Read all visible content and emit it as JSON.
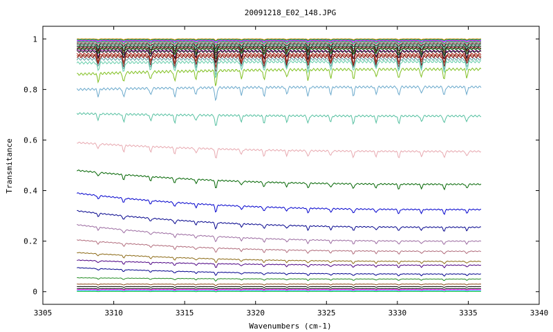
{
  "chart_data": {
    "type": "line",
    "title": "20091218_E02_148.JPG",
    "xlabel": "Wavenumbers (cm-1)",
    "ylabel": "Transmitance",
    "xlim": [
      3305,
      3340
    ],
    "ylim": [
      -0.05,
      1.05
    ],
    "x_ticks": [
      3305,
      3310,
      3315,
      3320,
      3325,
      3330,
      3335,
      3340
    ],
    "y_ticks": [
      0,
      0.2,
      0.4,
      0.6,
      0.8,
      1
    ],
    "x_tick_labels": [
      "3305",
      "3310",
      "3315",
      "3320",
      "3325",
      "3330",
      "3335",
      "3340"
    ],
    "y_tick_labels": [
      "0",
      "0.2",
      "0.4",
      "0.6",
      "0.8",
      "1"
    ],
    "x_range": [
      3307.4,
      3335.9
    ],
    "grid": false,
    "legend": "none",
    "absorption_lines": [
      3308.9,
      3310.7,
      3312.6,
      3314.3,
      3315.8,
      3317.2,
      3319.0,
      3320.6,
      3322.2,
      3323.7,
      3325.3,
      3326.9,
      3328.5,
      3330.1,
      3331.7,
      3333.3,
      3334.9
    ],
    "series": [
      {
        "color": "#ff8c00",
        "start": 1.0,
        "end": 1.0,
        "depth": 0.004
      },
      {
        "color": "#228b22",
        "start": 0.998,
        "end": 0.998,
        "depth": 0.004
      },
      {
        "color": "#1e90ff",
        "start": 0.995,
        "end": 0.995,
        "depth": 0.005
      },
      {
        "color": "#ff00ff",
        "start": 0.993,
        "end": 0.993,
        "depth": 0.006
      },
      {
        "color": "#808000",
        "start": 0.99,
        "end": 0.99,
        "depth": 0.008
      },
      {
        "color": "#00ced1",
        "start": 0.988,
        "end": 0.988,
        "depth": 0.008
      },
      {
        "color": "#cd5c5c",
        "start": 0.985,
        "end": 0.985,
        "depth": 0.01
      },
      {
        "color": "#000000",
        "start": 0.98,
        "end": 0.98,
        "depth": 0.012
      },
      {
        "color": "#2e8b57",
        "start": 0.975,
        "end": 0.975,
        "depth": 0.015
      },
      {
        "color": "#000000",
        "start": 0.97,
        "end": 0.97,
        "depth": 0.018
      },
      {
        "color": "#8b0000",
        "start": 0.965,
        "end": 0.965,
        "depth": 0.02
      },
      {
        "color": "#696969",
        "start": 0.962,
        "end": 0.962,
        "depth": 0.022
      },
      {
        "color": "#006400",
        "start": 0.96,
        "end": 0.96,
        "depth": 0.025
      },
      {
        "color": "#8b008b",
        "start": 0.955,
        "end": 0.952,
        "depth": 0.03
      },
      {
        "color": "#000000",
        "start": 0.95,
        "end": 0.95,
        "depth": 0.03
      },
      {
        "color": "#b22222",
        "start": 0.94,
        "end": 0.94,
        "depth": 0.035
      },
      {
        "color": "#a0522d",
        "start": 0.935,
        "end": 0.935,
        "depth": 0.035
      },
      {
        "color": "#800000",
        "start": 0.93,
        "end": 0.93,
        "depth": 0.04
      },
      {
        "color": "#5f9ea0",
        "start": 0.92,
        "end": 0.92,
        "depth": 0.04
      },
      {
        "color": "#66cdaa",
        "start": 0.905,
        "end": 0.91,
        "depth": 0.04
      },
      {
        "color": "#7fbf1f",
        "start": 0.86,
        "end": 0.88,
        "depth": 0.04
      },
      {
        "color": "#6aa9cc",
        "start": 0.8,
        "end": 0.81,
        "depth": 0.035
      },
      {
        "color": "#55c0a0",
        "start": 0.705,
        "end": 0.695,
        "depth": 0.03
      },
      {
        "color": "#e8a9b0",
        "start": 0.59,
        "end": 0.555,
        "depth": 0.025
      },
      {
        "color": "#006400",
        "start": 0.48,
        "end": 0.425,
        "depth": 0.02
      },
      {
        "color": "#0000cd",
        "start": 0.39,
        "end": 0.325,
        "depth": 0.018
      },
      {
        "color": "#00008b",
        "start": 0.32,
        "end": 0.255,
        "depth": 0.016
      },
      {
        "color": "#9b6aa0",
        "start": 0.265,
        "end": 0.2,
        "depth": 0.014
      },
      {
        "color": "#b06a7a",
        "start": 0.205,
        "end": 0.16,
        "depth": 0.012
      },
      {
        "color": "#8b6914",
        "start": 0.155,
        "end": 0.12,
        "depth": 0.01
      },
      {
        "color": "#4b0082",
        "start": 0.125,
        "end": 0.105,
        "depth": 0.01
      },
      {
        "color": "#00008b",
        "start": 0.095,
        "end": 0.07,
        "depth": 0.008
      },
      {
        "color": "#228b22",
        "start": 0.055,
        "end": 0.05,
        "depth": 0.006
      },
      {
        "color": "#8b4513",
        "start": 0.03,
        "end": 0.03,
        "depth": 0.004
      },
      {
        "color": "#000000",
        "start": 0.02,
        "end": 0.02,
        "depth": 0.003
      },
      {
        "color": "#000000",
        "start": 0.012,
        "end": 0.012,
        "depth": 0.002
      },
      {
        "color": "#ff00ff",
        "start": 0.008,
        "end": 0.008,
        "depth": 0.002
      },
      {
        "color": "#00bfff",
        "start": 0.004,
        "end": 0.004,
        "depth": 0.002
      },
      {
        "color": "#32cd32",
        "start": 0.001,
        "end": 0.001,
        "depth": 0.001
      }
    ]
  }
}
